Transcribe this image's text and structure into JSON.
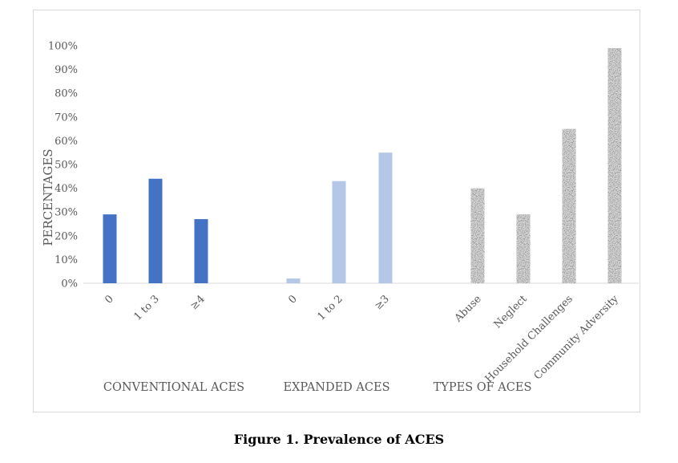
{
  "caption": "Figure 1. Prevalence of ACES",
  "colors": {
    "conventional": "#4472c4",
    "expanded": "#b4c7e7",
    "types": "pattern-gray-texture",
    "axis": "#d9d9d9",
    "text": "#595959"
  },
  "chart_data": {
    "type": "bar",
    "ylabel": "PERCENTAGES",
    "ylim": [
      0,
      100
    ],
    "ytick_labels": [
      "0%",
      "10%",
      "20%",
      "30%",
      "40%",
      "50%",
      "60%",
      "70%",
      "80%",
      "90%",
      "100%"
    ],
    "grid": false,
    "groups": [
      {
        "name": "CONVENTIONAL ACES",
        "categories": [
          "0",
          "1 to 3",
          "≥4"
        ],
        "values": [
          29,
          44,
          27
        ],
        "color": "#4472c4"
      },
      {
        "name": "EXPANDED ACES",
        "categories": [
          "0",
          "1 to 2",
          "≥3"
        ],
        "values": [
          2,
          43,
          55
        ],
        "color": "#b4c7e7"
      },
      {
        "name": "TYPES OF ACES",
        "categories": [
          "Abuse",
          "Neglect",
          "Household Challenges",
          "Community Adversity"
        ],
        "values": [
          40,
          29,
          65,
          99
        ],
        "color": "pattern"
      }
    ]
  }
}
